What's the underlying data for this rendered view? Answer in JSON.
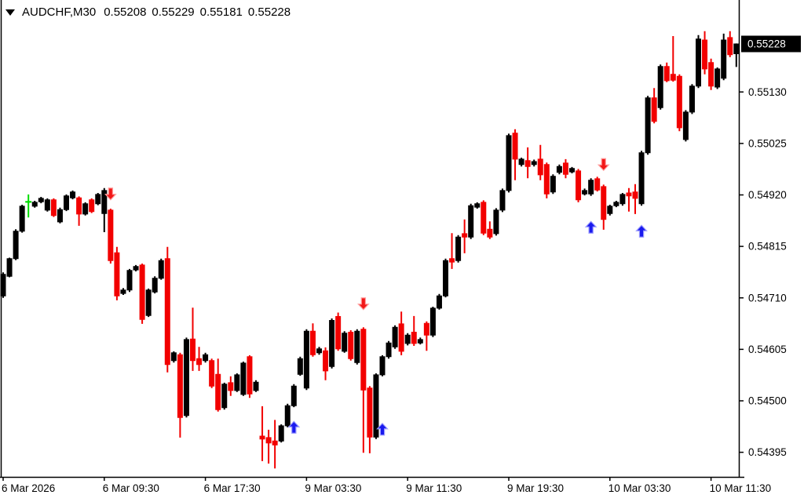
{
  "title_bar": {
    "symbol_with_timeframe": "AUDCHF,M30",
    "open": "0.55208",
    "high": "0.55229",
    "low": "0.55181",
    "close": "0.55228"
  },
  "chart_data": {
    "type": "candlestick",
    "symbol": "AUDCHF",
    "timeframe": "M30",
    "background": "#ffffff",
    "bull_color": "#000000",
    "bear_color": "#f20000",
    "doji_up_color": "#00dd00",
    "buy_arrow_color": "#1a1aee",
    "buy_arrow_edge": "#9a9aff",
    "sell_arrow_color": "#f21818",
    "sell_arrow_edge": "#ff9d9d",
    "axis_color": "#000000",
    "current_price": 0.55228,
    "current_price_label": "0.55228",
    "y_axis": {
      "ticks": [
        "0.55130",
        "0.55025",
        "0.54920",
        "0.54815",
        "0.54710",
        "0.54605",
        "0.54500",
        "0.54395"
      ],
      "tick_values": [
        0.5513,
        0.55025,
        0.5492,
        0.54815,
        0.5471,
        0.54605,
        0.545,
        0.54395
      ]
    },
    "x_axis": {
      "labels": [
        "6 Mar 2026",
        "6 Mar 09:30",
        "6 Mar 17:30",
        "9 Mar 03:30",
        "9 Mar 11:30",
        "9 Mar 19:30",
        "10 Mar 03:30",
        "10 Mar 11:30"
      ],
      "tick_candle_indices": [
        0,
        16,
        32,
        48,
        64,
        80,
        96,
        112
      ]
    },
    "doji_up_indices": [
      4
    ],
    "candles": [
      [
        0.54714,
        0.54762,
        0.5471,
        0.54758
      ],
      [
        0.54754,
        0.54792,
        0.54752,
        0.5479
      ],
      [
        0.5479,
        0.5485,
        0.54787,
        0.54846
      ],
      [
        0.54846,
        0.549,
        0.54843,
        0.54897
      ],
      [
        0.54906,
        0.54921,
        0.54874,
        0.54906
      ],
      [
        0.54897,
        0.54908,
        0.54894,
        0.54905
      ],
      [
        0.54906,
        0.54916,
        0.54903,
        0.54913
      ],
      [
        0.54889,
        0.54913,
        0.54886,
        0.5491
      ],
      [
        0.5491,
        0.54913,
        0.54875,
        0.54878
      ],
      [
        0.54865,
        0.54894,
        0.54862,
        0.5489
      ],
      [
        0.5489,
        0.54921,
        0.54887,
        0.54918
      ],
      [
        0.54914,
        0.54929,
        0.54911,
        0.54926
      ],
      [
        0.54914,
        0.54917,
        0.54857,
        0.54881
      ],
      [
        0.54881,
        0.54905,
        0.54878,
        0.54902
      ],
      [
        0.5491,
        0.54913,
        0.54883,
        0.54886
      ],
      [
        0.54902,
        0.54924,
        0.54899,
        0.54921
      ],
      [
        0.54882,
        0.54934,
        0.54844,
        0.54929
      ],
      [
        0.54889,
        0.54892,
        0.5478,
        0.54786
      ],
      [
        0.54802,
        0.54814,
        0.54705,
        0.54714
      ],
      [
        0.54719,
        0.5473,
        0.54716,
        0.54726
      ],
      [
        0.54726,
        0.54769,
        0.54722,
        0.54766
      ],
      [
        0.54767,
        0.54777,
        0.54764,
        0.54774
      ],
      [
        0.54777,
        0.5478,
        0.54657,
        0.54666
      ],
      [
        0.54674,
        0.54729,
        0.54671,
        0.54726
      ],
      [
        0.54722,
        0.54754,
        0.54719,
        0.5475
      ],
      [
        0.5475,
        0.5479,
        0.54747,
        0.54786
      ],
      [
        0.5479,
        0.54814,
        0.54558,
        0.54574
      ],
      [
        0.54582,
        0.54601,
        0.54578,
        0.54598
      ],
      [
        0.54594,
        0.54598,
        0.54425,
        0.54466
      ],
      [
        0.5447,
        0.54629,
        0.54466,
        0.54625
      ],
      [
        0.54626,
        0.5469,
        0.54561,
        0.54582
      ],
      [
        0.54586,
        0.5461,
        0.54561,
        0.54574
      ],
      [
        0.54582,
        0.54598,
        0.54578,
        0.54594
      ],
      [
        0.54582,
        0.54586,
        0.54526,
        0.5453
      ],
      [
        0.54554,
        0.54586,
        0.54478,
        0.54482
      ],
      [
        0.54486,
        0.54537,
        0.54482,
        0.54534
      ],
      [
        0.54537,
        0.5455,
        0.5451,
        0.54521
      ],
      [
        0.54521,
        0.54556,
        0.54518,
        0.54553
      ],
      [
        0.54513,
        0.5458,
        0.5451,
        0.54577
      ],
      [
        0.5459,
        0.54593,
        0.54506,
        0.54514
      ],
      [
        0.54521,
        0.54542,
        0.54518,
        0.54538
      ],
      [
        0.54428,
        0.54489,
        0.54377,
        0.54422
      ],
      [
        0.54425,
        0.54441,
        0.54372,
        0.54414
      ],
      [
        0.54418,
        0.54461,
        0.54362,
        0.5441
      ],
      [
        0.54418,
        0.54452,
        0.54415,
        0.54449
      ],
      [
        0.54449,
        0.54494,
        0.54446,
        0.5449
      ],
      [
        0.5449,
        0.54534,
        0.54487,
        0.5453
      ],
      [
        0.54554,
        0.5459,
        0.54551,
        0.54586
      ],
      [
        0.54526,
        0.54646,
        0.54522,
        0.54642
      ],
      [
        0.54642,
        0.54658,
        0.5459,
        0.54594
      ],
      [
        0.54598,
        0.5461,
        0.54594,
        0.54606
      ],
      [
        0.54602,
        0.54609,
        0.54542,
        0.54561
      ],
      [
        0.5457,
        0.54668,
        0.54566,
        0.54664
      ],
      [
        0.54672,
        0.5468,
        0.54602,
        0.54606
      ],
      [
        0.54601,
        0.54642,
        0.54598,
        0.54638
      ],
      [
        0.5464,
        0.54644,
        0.54582,
        0.54586
      ],
      [
        0.54578,
        0.54646,
        0.54574,
        0.54642
      ],
      [
        0.54646,
        0.5465,
        0.54394,
        0.54522
      ],
      [
        0.54526,
        0.5453,
        0.54393,
        0.54426
      ],
      [
        0.54426,
        0.54556,
        0.54422,
        0.54553
      ],
      [
        0.54553,
        0.54593,
        0.5455,
        0.5459
      ],
      [
        0.5459,
        0.54622,
        0.54586,
        0.54618
      ],
      [
        0.5461,
        0.54654,
        0.54606,
        0.5465
      ],
      [
        0.54657,
        0.54682,
        0.54593,
        0.54601
      ],
      [
        0.54617,
        0.54638,
        0.54613,
        0.54634
      ],
      [
        0.5464,
        0.54673,
        0.54612,
        0.54617
      ],
      [
        0.54618,
        0.54629,
        0.54615,
        0.54625
      ],
      [
        0.54658,
        0.54662,
        0.54602,
        0.54634
      ],
      [
        0.54634,
        0.54692,
        0.5463,
        0.54689
      ],
      [
        0.54689,
        0.54718,
        0.54686,
        0.54714
      ],
      [
        0.54714,
        0.5479,
        0.54711,
        0.54786
      ],
      [
        0.5479,
        0.54842,
        0.54769,
        0.54783
      ],
      [
        0.54786,
        0.54838,
        0.54782,
        0.54834
      ],
      [
        0.54841,
        0.5487,
        0.54801,
        0.54834
      ],
      [
        0.54834,
        0.54902,
        0.5483,
        0.54898
      ],
      [
        0.54895,
        0.54905,
        0.54892,
        0.54902
      ],
      [
        0.54905,
        0.54909,
        0.54838,
        0.54842
      ],
      [
        0.5485,
        0.54866,
        0.5483,
        0.54834
      ],
      [
        0.54841,
        0.54893,
        0.54837,
        0.54889
      ],
      [
        0.54889,
        0.54933,
        0.54885,
        0.54929
      ],
      [
        0.54929,
        0.55045,
        0.54925,
        0.55041
      ],
      [
        0.55046,
        0.55054,
        0.5495,
        0.54993
      ],
      [
        0.54982,
        0.54996,
        0.54978,
        0.54993
      ],
      [
        0.5499,
        0.55017,
        0.54954,
        0.54978
      ],
      [
        0.54982,
        0.54992,
        0.54978,
        0.54988
      ],
      [
        0.54993,
        0.55022,
        0.5495,
        0.54961
      ],
      [
        0.54982,
        0.54986,
        0.54913,
        0.54922
      ],
      [
        0.54926,
        0.54962,
        0.54922,
        0.54958
      ],
      [
        0.54966,
        0.54982,
        0.54962,
        0.54978
      ],
      [
        0.54985,
        0.54993,
        0.54954,
        0.54962
      ],
      [
        0.54967,
        0.54977,
        0.54964,
        0.54974
      ],
      [
        0.54969,
        0.54973,
        0.54905,
        0.5491
      ],
      [
        0.54922,
        0.54933,
        0.54919,
        0.54929
      ],
      [
        0.54922,
        0.54954,
        0.54918,
        0.5495
      ],
      [
        0.54953,
        0.54957,
        0.54927,
        0.5493
      ],
      [
        0.54937,
        0.54941,
        0.54849,
        0.5487
      ],
      [
        0.54882,
        0.549,
        0.54878,
        0.54897
      ],
      [
        0.54898,
        0.54908,
        0.54895,
        0.54905
      ],
      [
        0.54902,
        0.54924,
        0.54898,
        0.54921
      ],
      [
        0.54924,
        0.54934,
        0.54886,
        0.54918
      ],
      [
        0.54926,
        0.54942,
        0.54881,
        0.54913
      ],
      [
        0.54902,
        0.5501,
        0.54898,
        0.55006
      ],
      [
        0.55006,
        0.55122,
        0.55002,
        0.55118
      ],
      [
        0.55118,
        0.55138,
        0.55066,
        0.5507
      ],
      [
        0.55098,
        0.55186,
        0.55094,
        0.55182
      ],
      [
        0.55182,
        0.5519,
        0.5515,
        0.55153
      ],
      [
        0.55166,
        0.55244,
        0.55151,
        0.55154
      ],
      [
        0.55162,
        0.55166,
        0.5505,
        0.55057
      ],
      [
        0.55033,
        0.55093,
        0.55029,
        0.55089
      ],
      [
        0.55089,
        0.55146,
        0.55085,
        0.55142
      ],
      [
        0.55142,
        0.55246,
        0.55138,
        0.55238
      ],
      [
        0.55236,
        0.55254,
        0.55166,
        0.55177
      ],
      [
        0.5519,
        0.55198,
        0.55134,
        0.55142
      ],
      [
        0.5514,
        0.5518,
        0.55136,
        0.55177
      ],
      [
        0.55158,
        0.55249,
        0.55154,
        0.55236
      ],
      [
        0.55241,
        0.55254,
        0.55201,
        0.55206
      ],
      [
        0.55208,
        0.55229,
        0.55181,
        0.55228
      ]
    ],
    "signals": [
      {
        "candle": 17,
        "type": "sell",
        "price": 0.5491
      },
      {
        "candle": 46,
        "type": "buy",
        "price": 0.54458
      },
      {
        "candle": 57,
        "type": "sell",
        "price": 0.54686
      },
      {
        "candle": 60,
        "type": "buy",
        "price": 0.54454
      },
      {
        "candle": 93,
        "type": "buy",
        "price": 0.54866
      },
      {
        "candle": 95,
        "type": "sell",
        "price": 0.5497
      },
      {
        "candle": 101,
        "type": "buy",
        "price": 0.54858
      }
    ]
  }
}
